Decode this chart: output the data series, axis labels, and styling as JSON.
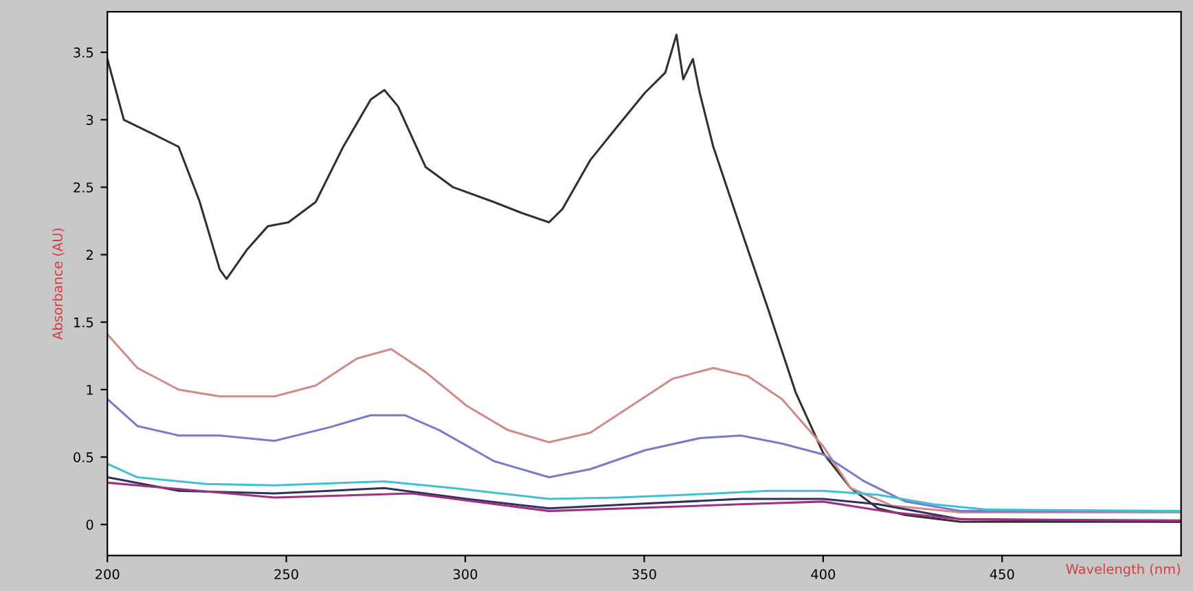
{
  "chart_data": {
    "type": "line",
    "xlabel": "Wavelength (nm)",
    "ylabel": "Absorbance (AU)",
    "xlim": [
      200,
      500
    ],
    "xticks": [
      200,
      250,
      300,
      350,
      400,
      450
    ],
    "ylim": [
      -0.23,
      3.8
    ],
    "yticks": [
      0,
      0.5,
      1,
      1.5,
      2,
      2.5,
      3,
      3.5
    ],
    "grid": false,
    "legend": false,
    "marker": "none",
    "line_style": "solid",
    "series": [
      {
        "color": "#303030",
        "x": [
          200,
          204.6,
          212.3,
          219.9,
          225.7,
          231.4,
          233.3,
          239.1,
          244.8,
          250.6,
          258.2,
          265.9,
          273.6,
          277.4,
          281.2,
          288.9,
          296.6,
          308,
          315.7,
          323.4,
          327.2,
          334.9,
          342.5,
          350.2,
          355.9,
          359,
          360.9,
          363.6,
          365.5,
          369.3,
          377,
          384.7,
          392.3,
          400,
          407.7,
          415.3,
          423,
          438.3,
          499.6
        ],
        "values": [
          3.45,
          3.0,
          2.9,
          2.8,
          2.4,
          1.89,
          1.82,
          2.04,
          2.21,
          2.24,
          2.39,
          2.8,
          3.15,
          3.22,
          3.1,
          2.65,
          2.5,
          2.39,
          2.31,
          2.24,
          2.34,
          2.7,
          2.95,
          3.2,
          3.35,
          3.63,
          3.3,
          3.45,
          3.2,
          2.8,
          2.19,
          1.59,
          0.98,
          0.53,
          0.27,
          0.12,
          0.07,
          0.02,
          0.02
        ]
      },
      {
        "color": "#d08a8a",
        "x": [
          200,
          208.4,
          219.9,
          231.4,
          246.7,
          258.2,
          269.7,
          279.3,
          288.9,
          300.4,
          311.9,
          323.4,
          334.9,
          346.4,
          357.9,
          369.3,
          378.9,
          388.5,
          400,
          407.7,
          419.2,
          438.3,
          499.6
        ],
        "values": [
          1.41,
          1.16,
          1.0,
          0.95,
          0.95,
          1.03,
          1.23,
          1.3,
          1.13,
          0.88,
          0.7,
          0.61,
          0.68,
          0.88,
          1.08,
          1.16,
          1.1,
          0.93,
          0.58,
          0.27,
          0.14,
          0.09,
          0.09
        ]
      },
      {
        "color": "#7a7ac8",
        "x": [
          200,
          208.4,
          219.9,
          231.4,
          246.7,
          262,
          273.6,
          283.1,
          292.7,
          308,
          323.4,
          334.9,
          350.2,
          365.5,
          377,
          388.5,
          400,
          411.5,
          423,
          438.3,
          499.6
        ],
        "values": [
          0.93,
          0.73,
          0.66,
          0.66,
          0.62,
          0.72,
          0.81,
          0.81,
          0.7,
          0.47,
          0.35,
          0.41,
          0.55,
          0.64,
          0.66,
          0.6,
          0.52,
          0.32,
          0.17,
          0.1,
          0.1
        ]
      },
      {
        "color": "#40c0d0",
        "x": [
          200,
          208.4,
          227.6,
          246.7,
          277.4,
          296.6,
          323.4,
          342.5,
          361.7,
          384.7,
          400,
          415.3,
          430.7,
          446,
          499.6
        ],
        "values": [
          0.45,
          0.35,
          0.3,
          0.29,
          0.32,
          0.27,
          0.19,
          0.2,
          0.22,
          0.25,
          0.25,
          0.22,
          0.15,
          0.11,
          0.1
        ]
      },
      {
        "color": "#303060",
        "x": [
          200,
          219.9,
          246.7,
          277.4,
          300.4,
          323.4,
          346.4,
          377,
          400,
          415.3,
          438.3,
          499.6
        ],
        "values": [
          0.35,
          0.25,
          0.23,
          0.27,
          0.19,
          0.12,
          0.15,
          0.19,
          0.19,
          0.15,
          0.04,
          0.02
        ]
      },
      {
        "color": "#a03080",
        "x": [
          200,
          246.7,
          285,
          323.4,
          377,
          400,
          419.2,
          438.3,
          499.6
        ],
        "values": [
          0.31,
          0.2,
          0.23,
          0.1,
          0.15,
          0.17,
          0.09,
          0.04,
          0.03
        ]
      }
    ]
  }
}
